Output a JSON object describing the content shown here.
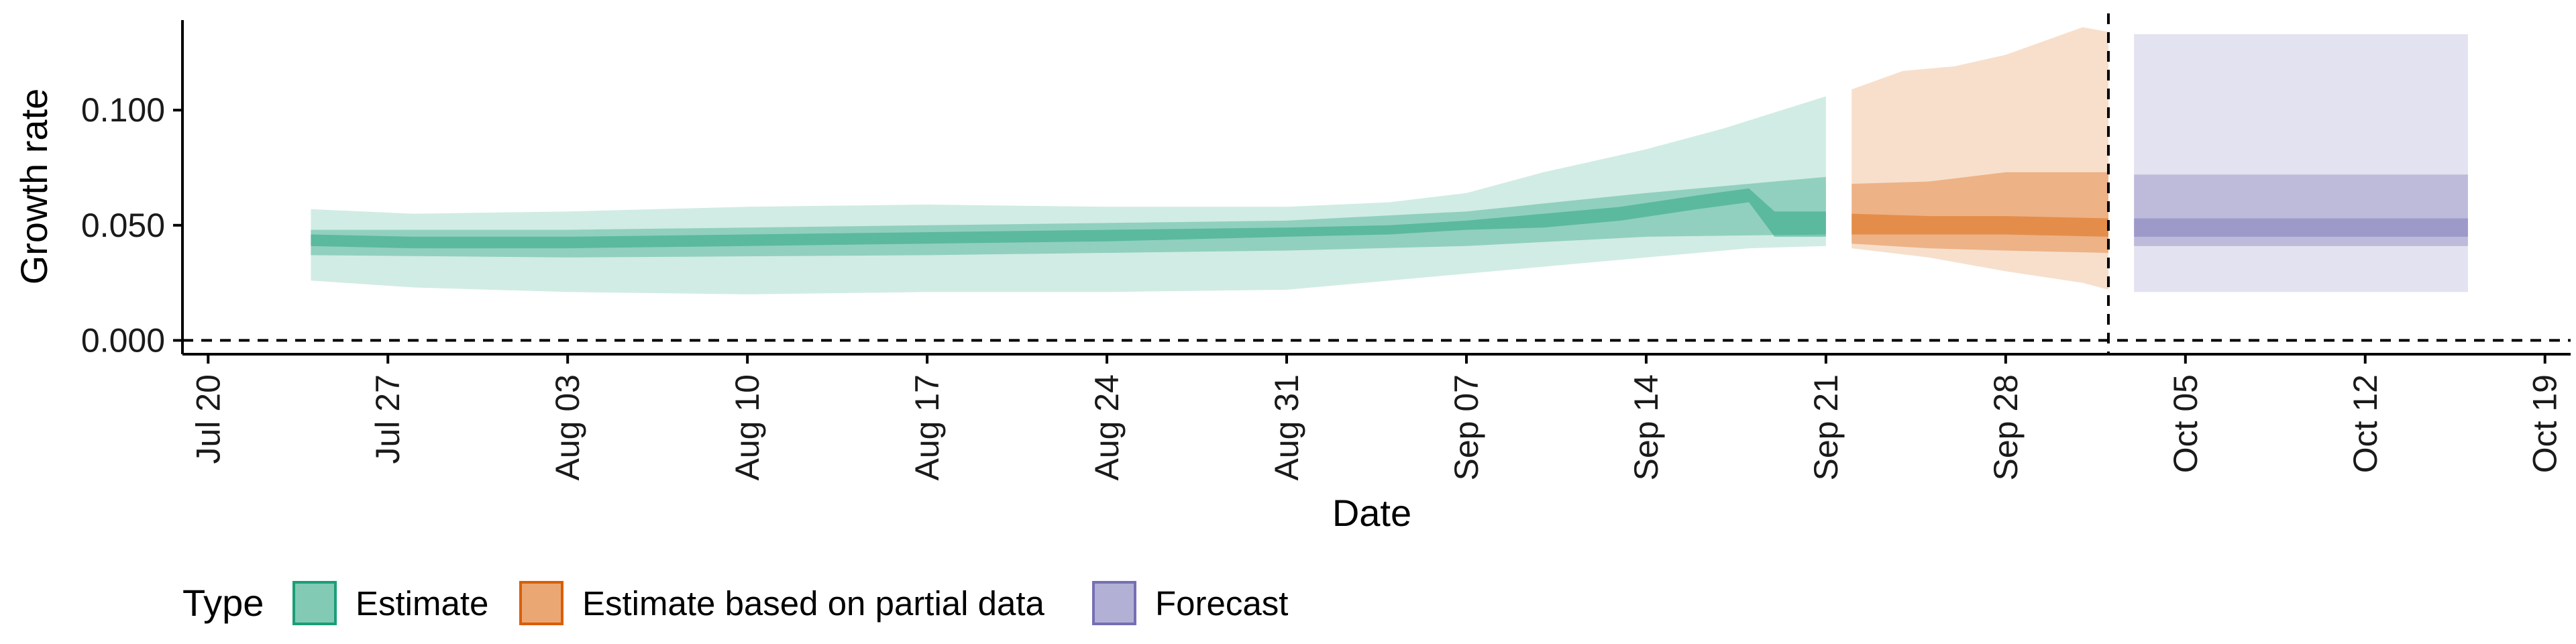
{
  "chart_data": {
    "type": "area",
    "xlabel": "Date",
    "ylabel": "Growth rate",
    "xlim": [
      "2020-07-19",
      "2020-10-20"
    ],
    "ylim": [
      -0.006,
      0.142
    ],
    "x_ticks": [
      "2020-07-20",
      "2020-07-27",
      "2020-08-03",
      "2020-08-10",
      "2020-08-17",
      "2020-08-24",
      "2020-08-31",
      "2020-09-07",
      "2020-09-14",
      "2020-09-21",
      "2020-09-28",
      "2020-10-05",
      "2020-10-12",
      "2020-10-19"
    ],
    "x_tick_labels": [
      "Jul 20",
      "Jul 27",
      "Aug 03",
      "Aug 10",
      "Aug 17",
      "Aug 24",
      "Aug 31",
      "Sep 07",
      "Sep 14",
      "Sep 21",
      "Sep 28",
      "Oct 05",
      "Oct 12",
      "Oct 19"
    ],
    "y_ticks": [
      0,
      0.05,
      0.1
    ],
    "y_tick_labels": [
      "0.000",
      "0.050",
      "0.100"
    ],
    "reference_lines": {
      "hline_y": 0,
      "vline_x": "2020-10-02"
    },
    "legend": {
      "title": "Type",
      "position": "bottom-left",
      "entries": [
        {
          "label": "Estimate",
          "color": "#1B9E77",
          "border": "#1B9E77"
        },
        {
          "label": "Estimate based on partial data",
          "color": "#D95F02",
          "border": "#D95F02"
        },
        {
          "label": "Forecast",
          "color": "#7570B3",
          "border": "#7570B3"
        }
      ]
    },
    "grid": false,
    "series": [
      {
        "name": "Estimate",
        "color": "#1B9E77",
        "bands": [
          {
            "alpha": 0.2,
            "lower": [
              [
                "2020-07-24",
                0.026
              ],
              [
                "2020-07-28",
                0.023
              ],
              [
                "2020-08-03",
                0.021
              ],
              [
                "2020-08-10",
                0.02
              ],
              [
                "2020-08-17",
                0.021
              ],
              [
                "2020-08-24",
                0.021
              ],
              [
                "2020-08-31",
                0.022
              ],
              [
                "2020-09-07",
                0.029
              ],
              [
                "2020-09-14",
                0.036
              ],
              [
                "2020-09-18",
                0.04
              ],
              [
                "2020-09-21",
                0.041
              ]
            ],
            "upper": [
              [
                "2020-07-24",
                0.057
              ],
              [
                "2020-07-28",
                0.055
              ],
              [
                "2020-08-03",
                0.056
              ],
              [
                "2020-08-10",
                0.058
              ],
              [
                "2020-08-17",
                0.059
              ],
              [
                "2020-08-24",
                0.058
              ],
              [
                "2020-08-31",
                0.058
              ],
              [
                "2020-09-04",
                0.06
              ],
              [
                "2020-09-07",
                0.064
              ],
              [
                "2020-09-10",
                0.073
              ],
              [
                "2020-09-14",
                0.083
              ],
              [
                "2020-09-17",
                0.092
              ],
              [
                "2020-09-21",
                0.106
              ]
            ]
          },
          {
            "alpha": 0.35,
            "lower": [
              [
                "2020-07-24",
                0.037
              ],
              [
                "2020-08-03",
                0.036
              ],
              [
                "2020-08-17",
                0.037
              ],
              [
                "2020-08-31",
                0.039
              ],
              [
                "2020-09-07",
                0.041
              ],
              [
                "2020-09-14",
                0.045
              ],
              [
                "2020-09-21",
                0.046
              ]
            ],
            "upper": [
              [
                "2020-07-24",
                0.048
              ],
              [
                "2020-08-03",
                0.048
              ],
              [
                "2020-08-17",
                0.05
              ],
              [
                "2020-08-31",
                0.052
              ],
              [
                "2020-09-07",
                0.056
              ],
              [
                "2020-09-14",
                0.064
              ],
              [
                "2020-09-18",
                0.068
              ],
              [
                "2020-09-21",
                0.071
              ]
            ]
          },
          {
            "alpha": 0.45,
            "lower": [
              [
                "2020-07-24",
                0.041
              ],
              [
                "2020-07-28",
                0.04
              ],
              [
                "2020-08-03",
                0.04
              ],
              [
                "2020-08-10",
                0.041
              ],
              [
                "2020-08-17",
                0.042
              ],
              [
                "2020-08-24",
                0.043
              ],
              [
                "2020-08-31",
                0.045
              ],
              [
                "2020-09-04",
                0.046
              ],
              [
                "2020-09-07",
                0.048
              ],
              [
                "2020-09-10",
                0.049
              ],
              [
                "2020-09-13",
                0.052
              ],
              [
                "2020-09-16",
                0.057
              ],
              [
                "2020-09-18",
                0.06
              ],
              [
                "2020-09-19",
                0.045
              ],
              [
                "2020-09-21",
                0.045
              ]
            ],
            "upper": [
              [
                "2020-07-24",
                0.046
              ],
              [
                "2020-07-28",
                0.045
              ],
              [
                "2020-08-03",
                0.045
              ],
              [
                "2020-08-10",
                0.046
              ],
              [
                "2020-08-17",
                0.047
              ],
              [
                "2020-08-24",
                0.048
              ],
              [
                "2020-08-31",
                0.049
              ],
              [
                "2020-09-04",
                0.05
              ],
              [
                "2020-09-07",
                0.052
              ],
              [
                "2020-09-10",
                0.055
              ],
              [
                "2020-09-13",
                0.058
              ],
              [
                "2020-09-16",
                0.063
              ],
              [
                "2020-09-18",
                0.066
              ],
              [
                "2020-09-19",
                0.056
              ],
              [
                "2020-09-21",
                0.056
              ]
            ]
          }
        ]
      },
      {
        "name": "Estimate based on partial data",
        "color": "#D95F02",
        "bands": [
          {
            "alpha": 0.2,
            "lower": [
              [
                "2020-09-22",
                0.04
              ],
              [
                "2020-09-25",
                0.036
              ],
              [
                "2020-09-28",
                0.03
              ],
              [
                "2020-10-01",
                0.025
              ],
              [
                "2020-10-02",
                0.022
              ]
            ],
            "upper": [
              [
                "2020-09-22",
                0.109
              ],
              [
                "2020-09-24",
                0.117
              ],
              [
                "2020-09-26",
                0.119
              ],
              [
                "2020-09-28",
                0.124
              ],
              [
                "2020-09-30",
                0.132
              ],
              [
                "2020-10-01",
                0.136
              ],
              [
                "2020-10-02",
                0.134
              ]
            ]
          },
          {
            "alpha": 0.35,
            "lower": [
              [
                "2020-09-22",
                0.042
              ],
              [
                "2020-09-25",
                0.04
              ],
              [
                "2020-09-28",
                0.039
              ],
              [
                "2020-10-02",
                0.038
              ]
            ],
            "upper": [
              [
                "2020-09-22",
                0.068
              ],
              [
                "2020-09-25",
                0.069
              ],
              [
                "2020-09-28",
                0.073
              ],
              [
                "2020-10-02",
                0.073
              ]
            ]
          },
          {
            "alpha": 0.45,
            "lower": [
              [
                "2020-09-22",
                0.046
              ],
              [
                "2020-09-25",
                0.046
              ],
              [
                "2020-09-28",
                0.046
              ],
              [
                "2020-10-02",
                0.045
              ]
            ],
            "upper": [
              [
                "2020-09-22",
                0.055
              ],
              [
                "2020-09-25",
                0.054
              ],
              [
                "2020-09-28",
                0.054
              ],
              [
                "2020-10-02",
                0.053
              ]
            ]
          }
        ]
      },
      {
        "name": "Forecast",
        "color": "#7570B3",
        "bands": [
          {
            "alpha": 0.2,
            "lower": [
              [
                "2020-10-03",
                0.021
              ],
              [
                "2020-10-16",
                0.021
              ]
            ],
            "upper": [
              [
                "2020-10-03",
                0.133
              ],
              [
                "2020-10-16",
                0.133
              ]
            ]
          },
          {
            "alpha": 0.35,
            "lower": [
              [
                "2020-10-03",
                0.041
              ],
              [
                "2020-10-16",
                0.041
              ]
            ],
            "upper": [
              [
                "2020-10-03",
                0.072
              ],
              [
                "2020-10-16",
                0.072
              ]
            ]
          },
          {
            "alpha": 0.45,
            "lower": [
              [
                "2020-10-03",
                0.045
              ],
              [
                "2020-10-16",
                0.045
              ]
            ],
            "upper": [
              [
                "2020-10-03",
                0.053
              ],
              [
                "2020-10-16",
                0.053
              ]
            ]
          }
        ]
      }
    ]
  }
}
